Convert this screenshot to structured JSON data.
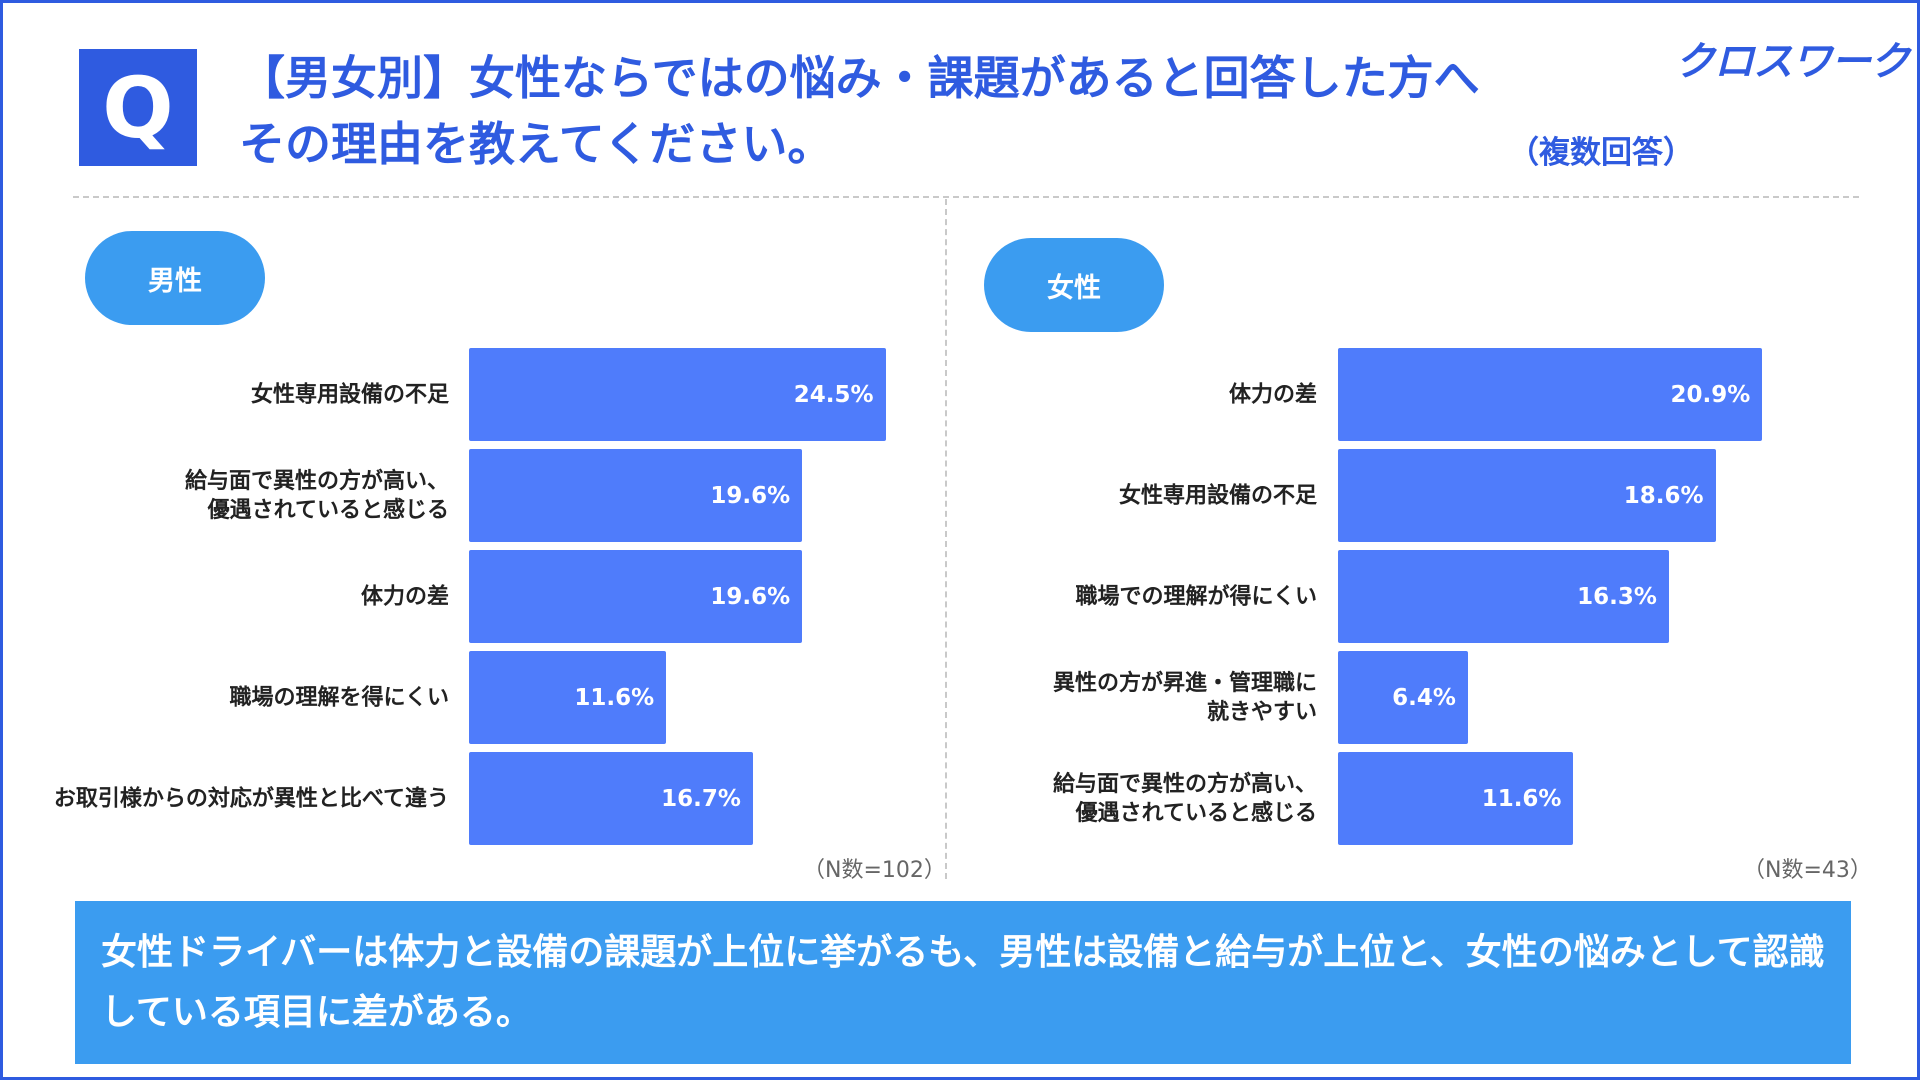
{
  "header": {
    "q_mark": "Q",
    "title": "【男女別】女性ならではの悩み・課題があると回答した方へ\nその理由を教えてください。",
    "subtitle": "（複数回答）",
    "logo": "クロスワーク"
  },
  "colors": {
    "accent": "#2f5be0",
    "bar": "#4f7cfb",
    "pill": "#3b9cf0"
  },
  "chart_data": [
    {
      "type": "bar",
      "orientation": "horizontal",
      "group_label": "男性",
      "categories": [
        "女性専用設備の不足",
        "給与面で異性の方が高い、\n優遇されていると感じる",
        "体力の差",
        "職場の理解を得にくい",
        "お取引様からの対応が異性と比べて違う"
      ],
      "values": [
        24.5,
        19.6,
        19.6,
        11.6,
        16.7
      ],
      "value_labels": [
        "24.5%",
        "19.6%",
        "19.6%",
        "11.6%",
        "16.7%"
      ],
      "n_label": "（N数=102）"
    },
    {
      "type": "bar",
      "orientation": "horizontal",
      "group_label": "女性",
      "categories": [
        "体力の差",
        "女性専用設備の不足",
        "職場での理解が得にくい",
        "異性の方が昇進・管理職に\n就きやすい",
        "給与面で異性の方が高い、\n優遇されていると感じる"
      ],
      "values": [
        20.9,
        18.6,
        16.3,
        6.4,
        11.6
      ],
      "value_labels": [
        "20.9%",
        "18.6%",
        "16.3%",
        "6.4%",
        "11.6%"
      ],
      "n_label": "（N数=43）"
    }
  ],
  "summary": "女性ドライバーは体力と設備の課題が上位に挙がるも、男性は設備と給与が上位と、女性の悩みとして認識している項目に差がある。"
}
